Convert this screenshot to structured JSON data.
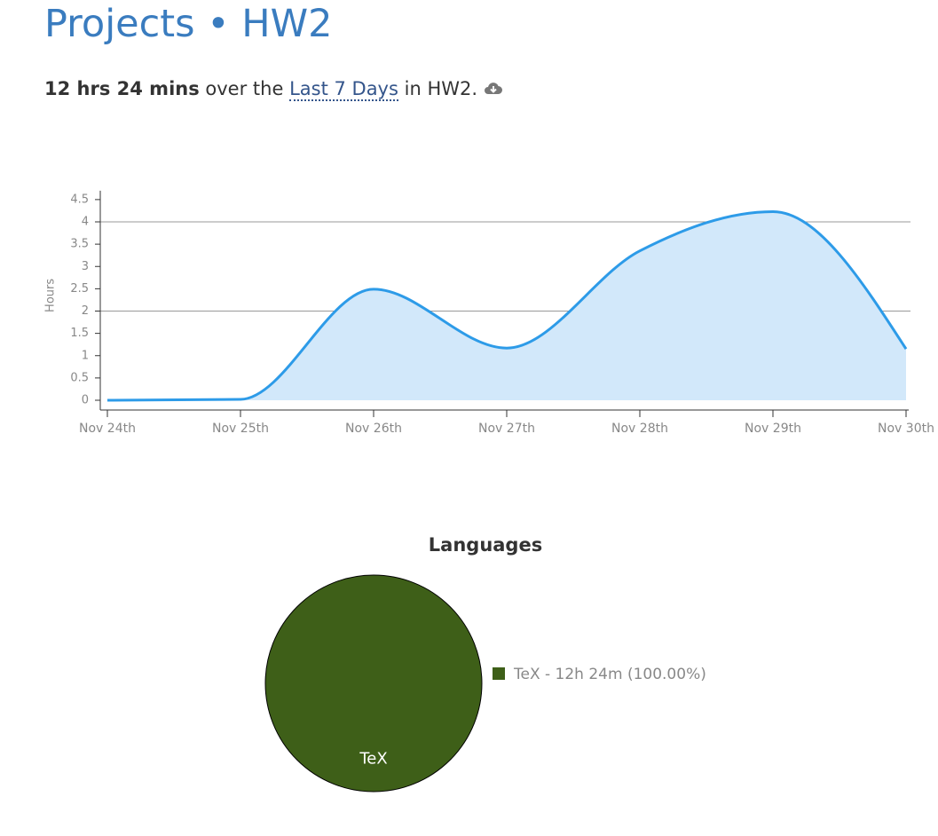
{
  "header": {
    "title": "Projects",
    "separator": "•",
    "project": "HW2"
  },
  "summary": {
    "total": "12 hrs 24 mins",
    "middle": "over the",
    "range": "Last 7 Days",
    "suffix": "in HW2."
  },
  "chart_data": [
    {
      "type": "area",
      "y_label": "Hours",
      "categories": [
        "Nov 24th",
        "Nov 25th",
        "Nov 26th",
        "Nov 27th",
        "Nov 28th",
        "Nov 29th",
        "Nov 30th"
      ],
      "series": [
        {
          "name": "HW2",
          "color": "#2d9be8",
          "fill": "#d2e8fa",
          "values": [
            0,
            0.02,
            2.49,
            1.17,
            3.35,
            4.23,
            1.15
          ]
        }
      ],
      "ylim": [
        0,
        4.7
      ],
      "yticks": [
        0,
        0.5,
        1,
        1.5,
        2,
        2.5,
        3,
        3.5,
        4,
        4.5
      ],
      "grid_lines": [
        2,
        4
      ]
    },
    {
      "type": "pie",
      "title": "Languages",
      "categories": [
        "TeX"
      ],
      "values": [
        100
      ],
      "value_labels": [
        "TeX - 12h 24m (100.00%)"
      ],
      "colors": [
        "#3e5f18"
      ]
    }
  ]
}
